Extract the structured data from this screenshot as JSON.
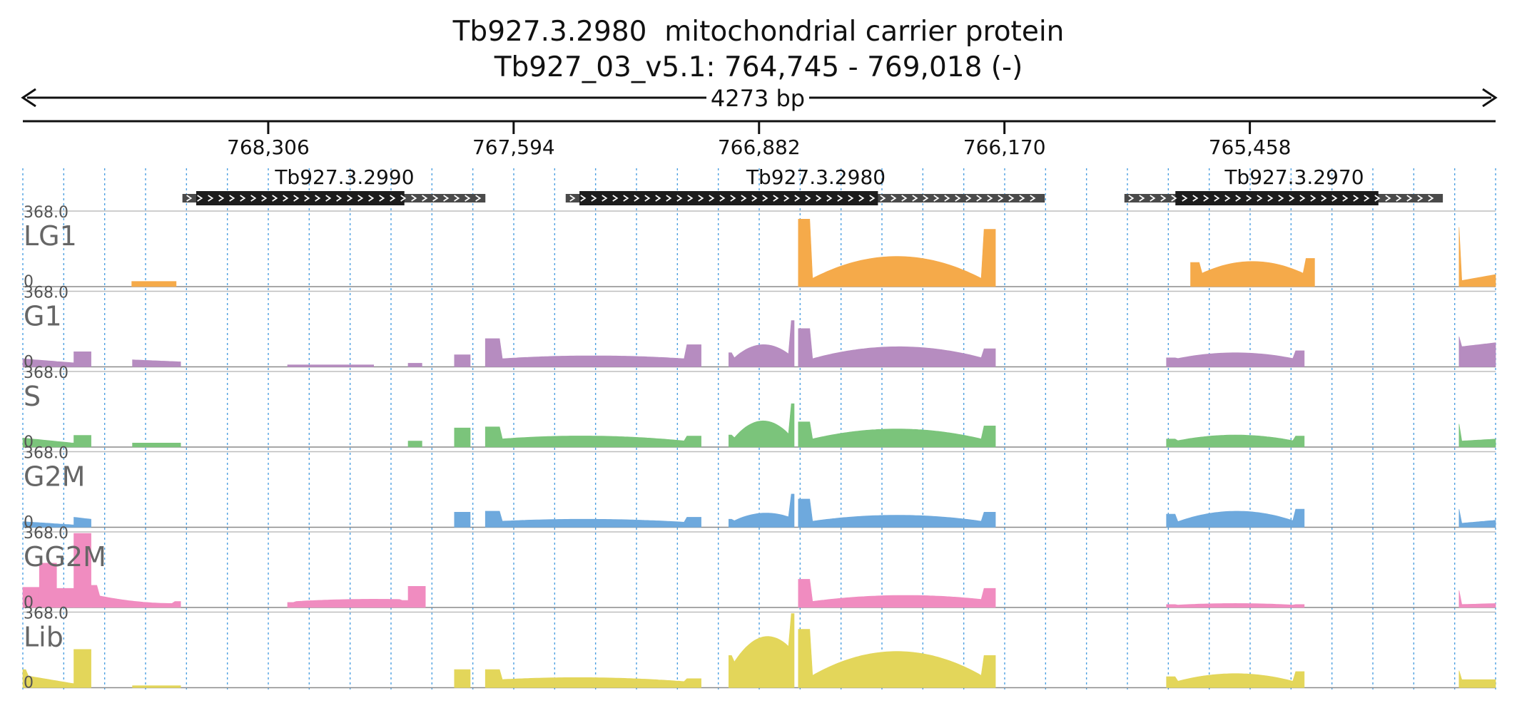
{
  "header": {
    "gene_id": "Tb927.3.2980",
    "gene_desc": "mitochondrial carrier protein",
    "locus": "Tb927_03_v5.1: 764,745 - 769,018 (-)"
  },
  "ruler": {
    "length_label": "4273 bp",
    "ticks": [
      {
        "label": "768,306",
        "coord": 768306
      },
      {
        "label": "767,594",
        "coord": 767594
      },
      {
        "label": "766,882",
        "coord": 766882
      },
      {
        "label": "766,170",
        "coord": 766170
      },
      {
        "label": "765,458",
        "coord": 765458
      }
    ]
  },
  "genes": [
    {
      "name": "Tb927.3.2990",
      "span": [
        768555,
        767676
      ],
      "cds": [
        768515,
        767911
      ]
    },
    {
      "name": "Tb927.3.2980",
      "span": [
        767443,
        766053
      ],
      "cds": [
        767403,
        766537
      ]
    },
    {
      "name": "Tb927.3.2970",
      "span": [
        765822,
        764898
      ],
      "cds": [
        765674,
        765085
      ]
    }
  ],
  "colors": {
    "LG1": "#f5aa4a",
    "G1": "#b68cc0",
    "S": "#7bc47b",
    "G2M": "#6ea9dd",
    "GG2M": "#f08cc0",
    "Lib": "#e3d65a",
    "gene_cds": "#1c1c1c",
    "gene_utr": "#4a4a4a",
    "grid": "#4d9fe0"
  },
  "chart_data": {
    "type": "area",
    "x_axis": {
      "label": "",
      "unit": "bp",
      "reversed": true,
      "range": [
        769018,
        764745
      ]
    },
    "y_axis": {
      "range": [
        0,
        368.0
      ]
    },
    "grid": true,
    "tracks": [
      {
        "name": "LG1",
        "max_label": "368.0",
        "min_label": "0",
        "segments": [
          {
            "x0": 768702,
            "x1": 768573,
            "shape": "flat",
            "values": [
              26,
              26
            ]
          },
          {
            "x0": 766768,
            "x1": 766196,
            "shape": "ends",
            "values": [
              335,
              40,
              150,
              40,
              285
            ]
          },
          {
            "x0": 765630,
            "x1": 765270,
            "shape": "ends",
            "values": [
              120,
              60,
              125,
              60,
              140
            ]
          },
          {
            "x0": 764851,
            "x1": 764745,
            "shape": "ends",
            "values": [
              295,
              30,
              60
            ]
          }
        ]
      },
      {
        "name": "G1",
        "max_label": "368.0",
        "min_label": "0",
        "segments": [
          {
            "x0": 769018,
            "x1": 768870,
            "shape": "flat",
            "values": [
              40,
              20
            ]
          },
          {
            "x0": 768870,
            "x1": 768820,
            "shape": "flat",
            "values": [
              75,
              75
            ]
          },
          {
            "x0": 768700,
            "x1": 768560,
            "shape": "flat",
            "values": [
              35,
              25
            ]
          },
          {
            "x0": 768250,
            "x1": 768000,
            "shape": "flat",
            "values": [
              10,
              10
            ]
          },
          {
            "x0": 767900,
            "x1": 767860,
            "shape": "flat",
            "values": [
              18,
              18
            ]
          },
          {
            "x0": 767766,
            "x1": 767720,
            "shape": "flat",
            "values": [
              60,
              60
            ]
          },
          {
            "x0": 767676,
            "x1": 767050,
            "shape": "ends",
            "values": [
              140,
              40,
              55,
              40,
              110
            ]
          },
          {
            "x0": 766970,
            "x1": 766780,
            "shape": "ends",
            "values": [
              70,
              40,
              110,
              60,
              230
            ]
          },
          {
            "x0": 766768,
            "x1": 766196,
            "shape": "ends",
            "values": [
              190,
              40,
              100,
              45,
              90
            ]
          },
          {
            "x0": 765700,
            "x1": 765300,
            "shape": "ends",
            "values": [
              45,
              40,
              70,
              40,
              80
            ]
          },
          {
            "x0": 764851,
            "x1": 764745,
            "shape": "ends",
            "values": [
              150,
              100,
              120
            ]
          }
        ]
      },
      {
        "name": "S",
        "max_label": "368.0",
        "min_label": "0",
        "segments": [
          {
            "x0": 769018,
            "x1": 768870,
            "shape": "flat",
            "values": [
              45,
              20
            ]
          },
          {
            "x0": 768870,
            "x1": 768820,
            "shape": "flat",
            "values": [
              58,
              58
            ]
          },
          {
            "x0": 768700,
            "x1": 768560,
            "shape": "flat",
            "values": [
              20,
              20
            ]
          },
          {
            "x0": 767900,
            "x1": 767860,
            "shape": "flat",
            "values": [
              30,
              30
            ]
          },
          {
            "x0": 767766,
            "x1": 767720,
            "shape": "flat",
            "values": [
              95,
              95
            ]
          },
          {
            "x0": 767676,
            "x1": 767050,
            "shape": "ends",
            "values": [
              100,
              40,
              55,
              30,
              55
            ]
          },
          {
            "x0": 766970,
            "x1": 766780,
            "shape": "ends",
            "values": [
              60,
              40,
              130,
              60,
              215
            ]
          },
          {
            "x0": 766768,
            "x1": 766196,
            "shape": "ends",
            "values": [
              125,
              40,
              90,
              40,
              105
            ]
          },
          {
            "x0": 765700,
            "x1": 765300,
            "shape": "ends",
            "values": [
              40,
              30,
              60,
              30,
              55
            ]
          },
          {
            "x0": 764851,
            "x1": 764745,
            "shape": "ends",
            "values": [
              115,
              30,
              40
            ]
          }
        ]
      },
      {
        "name": "G2M",
        "max_label": "368.0",
        "min_label": "0",
        "segments": [
          {
            "x0": 769018,
            "x1": 768870,
            "shape": "flat",
            "values": [
              28,
              12
            ]
          },
          {
            "x0": 768870,
            "x1": 768820,
            "shape": "flat",
            "values": [
              50,
              40
            ]
          },
          {
            "x0": 767766,
            "x1": 767720,
            "shape": "flat",
            "values": [
              75,
              75
            ]
          },
          {
            "x0": 767676,
            "x1": 767050,
            "shape": "ends",
            "values": [
              80,
              30,
              40,
              25,
              50
            ]
          },
          {
            "x0": 766970,
            "x1": 766780,
            "shape": "ends",
            "values": [
              40,
              30,
              70,
              50,
              165
            ]
          },
          {
            "x0": 766768,
            "x1": 766196,
            "shape": "ends",
            "values": [
              140,
              30,
              60,
              30,
              75
            ]
          },
          {
            "x0": 765700,
            "x1": 765300,
            "shape": "ends",
            "values": [
              65,
              25,
              80,
              30,
              90
            ]
          },
          {
            "x0": 764851,
            "x1": 764745,
            "shape": "ends",
            "values": [
              90,
              20,
              35
            ]
          }
        ]
      },
      {
        "name": "GG2M",
        "max_label": "368.0",
        "min_label": "0",
        "segments": [
          {
            "x0": 769018,
            "x1": 768970,
            "shape": "flat",
            "values": [
              100,
              100
            ]
          },
          {
            "x0": 768970,
            "x1": 768920,
            "shape": "flat",
            "values": [
              220,
              220
            ]
          },
          {
            "x0": 768920,
            "x1": 768870,
            "shape": "flat",
            "values": [
              95,
              95
            ]
          },
          {
            "x0": 768870,
            "x1": 768820,
            "shape": "flat",
            "values": [
              368,
              368
            ]
          },
          {
            "x0": 768820,
            "x1": 768560,
            "shape": "ends",
            "values": [
              110,
              60,
              30,
              20,
              30
            ]
          },
          {
            "x0": 768250,
            "x1": 767900,
            "shape": "ends",
            "values": [
              25,
              30,
              40,
              40,
              35
            ]
          },
          {
            "x0": 767900,
            "x1": 767850,
            "shape": "flat",
            "values": [
              105,
              105
            ]
          },
          {
            "x0": 766768,
            "x1": 766196,
            "shape": "ends",
            "values": [
              140,
              30,
              60,
              40,
              95
            ]
          },
          {
            "x0": 765700,
            "x1": 765300,
            "shape": "ends",
            "values": [
              15,
              12,
              20,
              12,
              15
            ]
          },
          {
            "x0": 764851,
            "x1": 764745,
            "shape": "ends",
            "values": [
              85,
              15,
              20
            ]
          }
        ]
      },
      {
        "name": "Lib",
        "max_label": "368.0",
        "min_label": "0",
        "segments": [
          {
            "x0": 769018,
            "x1": 768870,
            "shape": "ends",
            "values": [
              90,
              60,
              20
            ]
          },
          {
            "x0": 768870,
            "x1": 768820,
            "shape": "flat",
            "values": [
              190,
              190
            ]
          },
          {
            "x0": 768700,
            "x1": 768560,
            "shape": "flat",
            "values": [
              10,
              10
            ]
          },
          {
            "x0": 767766,
            "x1": 767720,
            "shape": "flat",
            "values": [
              90,
              90
            ]
          },
          {
            "x0": 767676,
            "x1": 767050,
            "shape": "ends",
            "values": [
              90,
              40,
              50,
              30,
              45
            ]
          },
          {
            "x0": 766970,
            "x1": 766780,
            "shape": "ends",
            "values": [
              160,
              120,
              250,
              200,
              368
            ]
          },
          {
            "x0": 766768,
            "x1": 766196,
            "shape": "ends",
            "values": [
              290,
              60,
              180,
              60,
              160
            ]
          },
          {
            "x0": 765700,
            "x1": 765300,
            "shape": "ends",
            "values": [
              55,
              30,
              70,
              30,
              80
            ]
          },
          {
            "x0": 764851,
            "x1": 764745,
            "shape": "ends",
            "values": [
              85,
              40,
              40
            ]
          }
        ]
      }
    ]
  }
}
